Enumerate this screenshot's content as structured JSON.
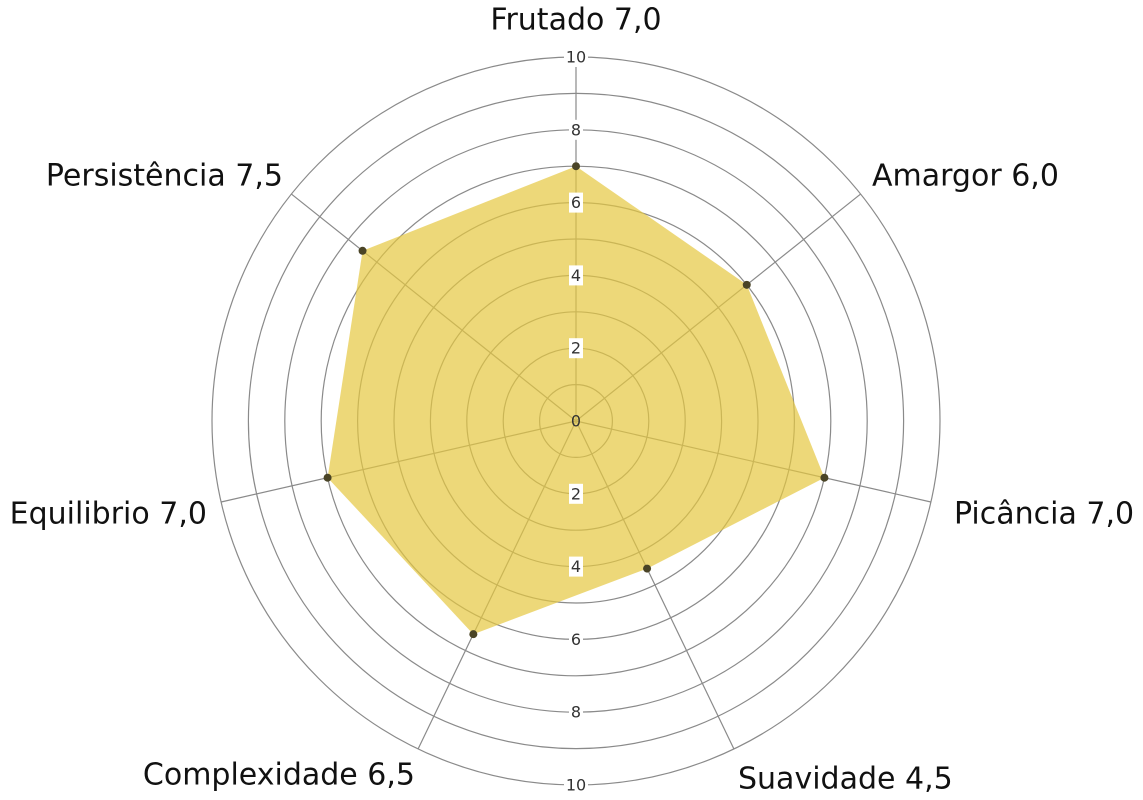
{
  "chart_data": {
    "type": "radar",
    "axes": [
      {
        "label": "Frutado 7,0",
        "value": 7.0
      },
      {
        "label": "Amargor 6,0",
        "value": 6.0
      },
      {
        "label": "Picância 7,0",
        "value": 7.0
      },
      {
        "label": "Suavidade 4,5",
        "value": 4.5
      },
      {
        "label": "Complexidade 6,5",
        "value": 6.5
      },
      {
        "label": "Equilibrio 7,0",
        "value": 7.0
      },
      {
        "label": "Persistência 7,5",
        "value": 7.5
      }
    ],
    "range": [
      0,
      10
    ],
    "ring_values": [
      1,
      2,
      3,
      4,
      5,
      6,
      7,
      8,
      9,
      10
    ],
    "tick_labels": [
      "0",
      "2",
      "4",
      "6",
      "8",
      "10"
    ],
    "lower_tick_labels": [
      "2",
      "4",
      "6",
      "8",
      "10"
    ],
    "grid": true,
    "fill_color": "#e6c840",
    "point_color": "#4a4426",
    "grid_color": "#8a8a8a"
  }
}
